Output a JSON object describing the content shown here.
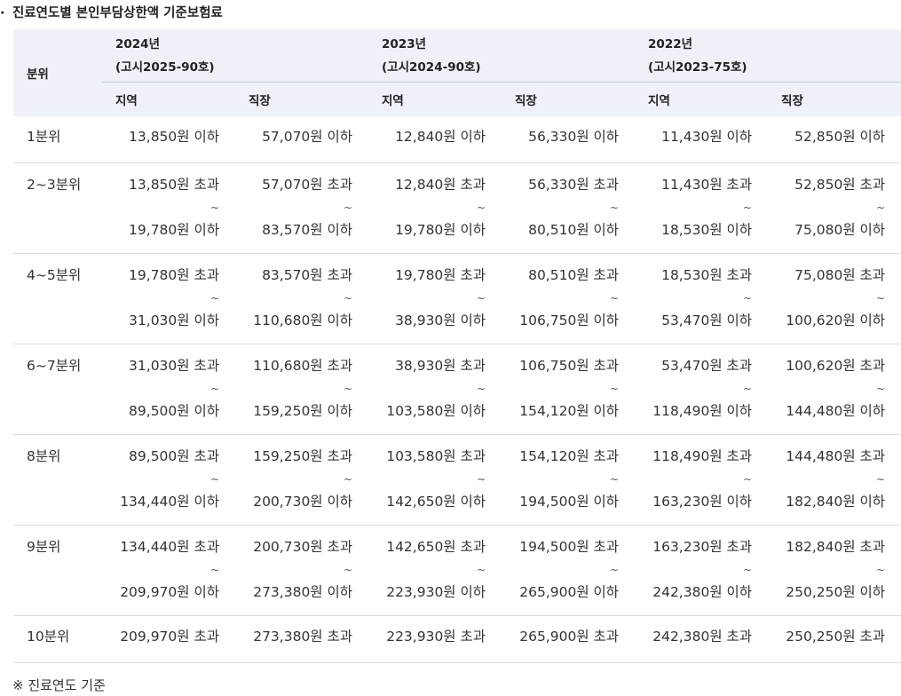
{
  "title": {
    "bullet": "·",
    "text": "진료연도별 본인부담상한액 기준보험료"
  },
  "table": {
    "row_header": "분위",
    "years": [
      {
        "year": "2024년",
        "notice": "(고시2025-90호)"
      },
      {
        "year": "2023년",
        "notice": "(고시2024-90호)"
      },
      {
        "year": "2022년",
        "notice": "(고시2023-75호)"
      }
    ],
    "sub_headers": [
      "지역",
      "직장",
      "지역",
      "직장",
      "지역",
      "직장"
    ],
    "tilde": "~",
    "rows": [
      {
        "label": "1분위",
        "cells": [
          [
            "13,850원 이하"
          ],
          [
            "57,070원 이하"
          ],
          [
            "12,840원 이하"
          ],
          [
            "56,330원 이하"
          ],
          [
            "11,430원 이하"
          ],
          [
            "52,850원 이하"
          ]
        ]
      },
      {
        "label": "2~3분위",
        "cells": [
          [
            "13,850원 초과",
            "19,780원 이하"
          ],
          [
            "57,070원 초과",
            "83,570원 이하"
          ],
          [
            "12,840원 초과",
            "19,780원 이하"
          ],
          [
            "56,330원 초과",
            "80,510원 이하"
          ],
          [
            "11,430원 초과",
            "18,530원 이하"
          ],
          [
            "52,850원 초과",
            "75,080원 이하"
          ]
        ]
      },
      {
        "label": "4~5분위",
        "cells": [
          [
            "19,780원 초과",
            "31,030원 이하"
          ],
          [
            "83,570원 초과",
            "110,680원 이하"
          ],
          [
            "19,780원 초과",
            "38,930원 이하"
          ],
          [
            "80,510원 초과",
            "106,750원 이하"
          ],
          [
            "18,530원 초과",
            "53,470원 이하"
          ],
          [
            "75,080원 초과",
            "100,620원 이하"
          ]
        ]
      },
      {
        "label": "6~7분위",
        "cells": [
          [
            "31,030원 초과",
            "89,500원 이하"
          ],
          [
            "110,680원 초과",
            "159,250원 이하"
          ],
          [
            "38,930원 초과",
            "103,580원 이하"
          ],
          [
            "106,750원 초과",
            "154,120원 이하"
          ],
          [
            "53,470원 초과",
            "118,490원 이하"
          ],
          [
            "100,620원 초과",
            "144,480원 이하"
          ]
        ]
      },
      {
        "label": "8분위",
        "cells": [
          [
            "89,500원 초과",
            "134,440원 이하"
          ],
          [
            "159,250원 초과",
            "200,730원 이하"
          ],
          [
            "103,580원 초과",
            "142,650원 이하"
          ],
          [
            "154,120원 초과",
            "194,500원 이하"
          ],
          [
            "118,490원 초과",
            "163,230원 이하"
          ],
          [
            "144,480원 초과",
            "182,840원 이하"
          ]
        ]
      },
      {
        "label": "9분위",
        "cells": [
          [
            "134,440원 초과",
            "209,970원 이하"
          ],
          [
            "200,730원 초과",
            "273,380원 이하"
          ],
          [
            "142,650원 초과",
            "223,930원 이하"
          ],
          [
            "194,500원 초과",
            "265,900원 이하"
          ],
          [
            "163,230원 초과",
            "242,380원 이하"
          ],
          [
            "182,840원 초과",
            "250,250원 이하"
          ]
        ]
      },
      {
        "label": "10분위",
        "cells": [
          [
            "209,970원 초과"
          ],
          [
            "273,380원 초과"
          ],
          [
            "223,930원 초과"
          ],
          [
            "265,900원 초과"
          ],
          [
            "242,380원 초과"
          ],
          [
            "250,250원 초과"
          ]
        ]
      }
    ]
  },
  "note": "※ 진료연도 기준"
}
